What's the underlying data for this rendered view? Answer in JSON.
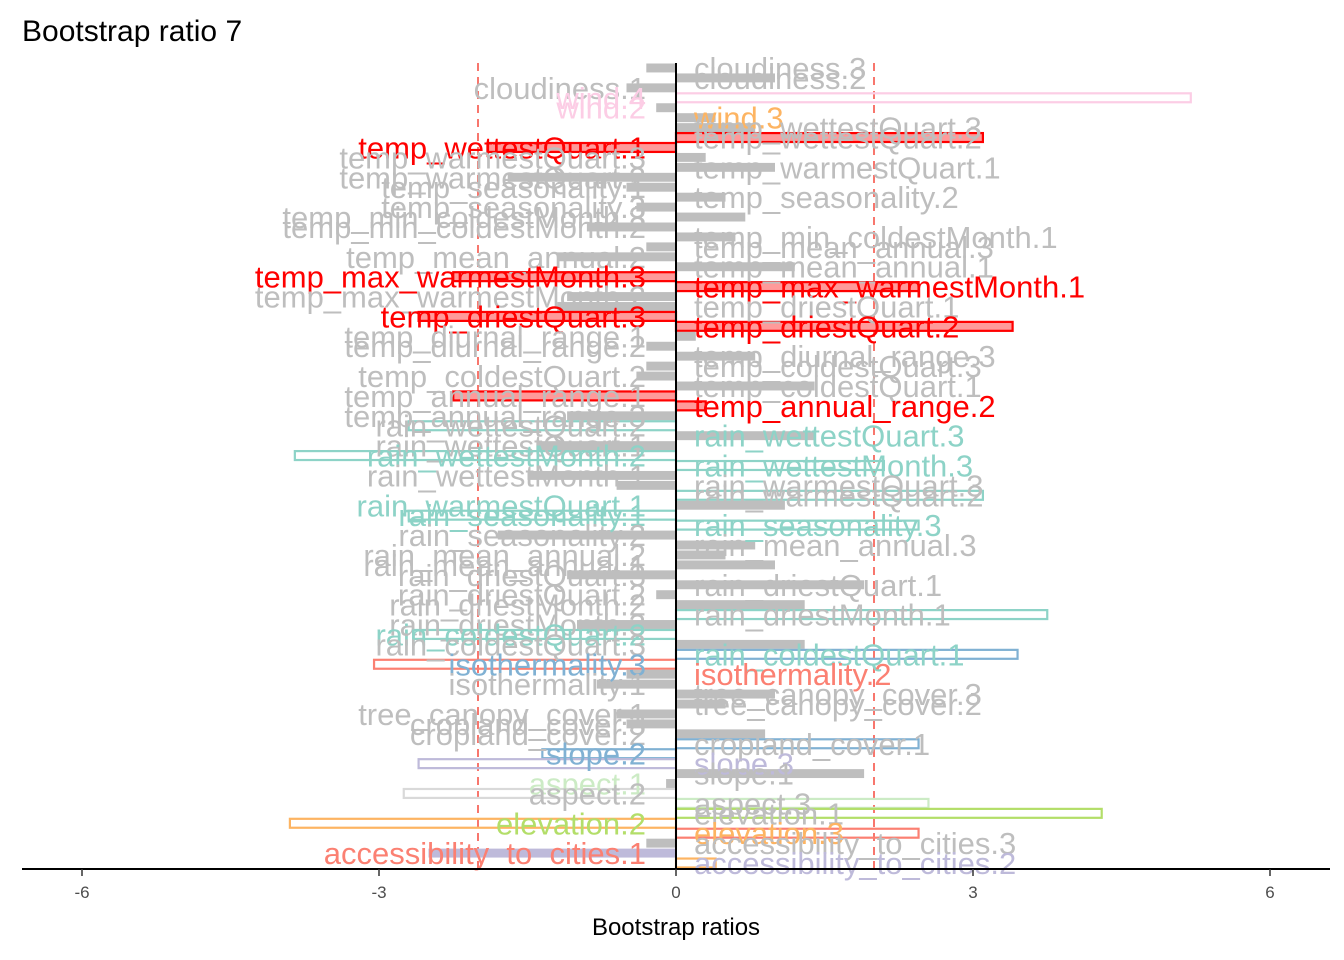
{
  "chart_data": {
    "type": "bar",
    "orientation": "horizontal",
    "title": "Bootstrap ratio 7",
    "xlabel": "Bootstrap ratios",
    "ylabel": "",
    "xlim": [
      -6.0,
      6.0
    ],
    "xticks": [
      -6,
      -3,
      0,
      3,
      6
    ],
    "threshold": 2,
    "grid": false,
    "legend": "none",
    "categories": [
      "cloudiness.3",
      "cloudiness.2",
      "cloudiness.1",
      "wind.4",
      "wind.2",
      "wind.3",
      "temp_wettestQuart.3",
      "temp_wettestQuart.2",
      "temp_wettestQuart.1",
      "temp_warmestQuart.3",
      "temp_warmestQuart.1",
      "temp_warmestQuart.2",
      "temp_seasonality.1",
      "temp_seasonality.2",
      "temp_seasonality.3",
      "temp_min_coldestMonth.3",
      "temp_min_coldestMonth.2",
      "temp_min_coldestMonth.1",
      "temp_mean_annual.3",
      "temp_mean_annual.2",
      "temp_mean_annual.1",
      "temp_max_warmestMonth.3",
      "temp_max_warmestMonth.1",
      "temp_max_warmestMonth.2",
      "temp_driestQuart.1",
      "temp_driestQuart.3",
      "temp_driestQuart.2",
      "temp_diurnal_range.1",
      "temp_diurnal_range.2",
      "temp_diurnal_range.3",
      "temp_coldestQuart.3",
      "temp_coldestQuart.2",
      "temp_coldestQuart.1",
      "temp_annual_range.1",
      "temp_annual_range.2",
      "temp_annual_range.3",
      "rain_wettestQuart.2",
      "rain_wettestQuart.3",
      "rain_wettestQuart.1",
      "rain_wettestMonth.2",
      "rain_wettestMonth.3",
      "rain_wettestMonth.1",
      "rain_warmestQuart.3",
      "rain_warmestQuart.2",
      "rain_warmestQuart.1",
      "rain_seasonality.1",
      "rain_seasonality.3",
      "rain_seasonality.2",
      "rain_mean_annual.3",
      "rain_mean_annual.2",
      "rain_mean_annual.1",
      "rain_driestQuart.3",
      "rain_driestQuart.1",
      "rain_driestQuart.2",
      "rain_driestMonth.2",
      "rain_driestMonth.1",
      "rain_driestMonth.3",
      "rain_coldestQuart.2",
      "rain_coldestQuart.3",
      "rain_coldestQuart.1",
      "isothermality.3",
      "isothermality.2",
      "isothermality.1",
      "tree_canopy_cover.3",
      "tree_canopy_cover.2",
      "tree_canopy_cover.1",
      "cropland_cover.3",
      "cropland_cover.2",
      "cropland_cover.1",
      "slope.2",
      "slope.3",
      "slope.1",
      "aspect.1",
      "aspect.2",
      "aspect.3",
      "elevation.1",
      "elevation.2",
      "elevation.3",
      "accessibility_to_cities.3",
      "accessibility_to_cities.1",
      "accessibility_to_cities.2"
    ],
    "values": [
      -0.3,
      1.0,
      -0.5,
      5.2,
      -0.2,
      0.4,
      0.8,
      3.1,
      -1.9,
      0.3,
      1.0,
      -1.7,
      -0.5,
      0.5,
      -0.4,
      0.7,
      -0.9,
      0.6,
      -0.3,
      -1.2,
      1.2,
      -2.25,
      2.45,
      -1.1,
      -1.2,
      -2.6,
      3.4,
      0.2,
      -0.3,
      0.8,
      -0.3,
      -0.4,
      1.4,
      -2.25,
      0.3,
      -1.1,
      -2.7,
      1.4,
      -1.4,
      -3.85,
      2.1,
      -1.5,
      -0.6,
      3.1,
      1.1,
      -2.7,
      2.45,
      -1.8,
      0.8,
      0.5,
      1.0,
      -1.1,
      1.9,
      -0.2,
      1.3,
      3.75,
      -1.0,
      -2.65,
      1.3,
      3.45,
      -3.05,
      -0.5,
      -0.8,
      1.0,
      0.5,
      -0.6,
      -0.5,
      0.9,
      2.45,
      -1.35,
      -2.6,
      1.9,
      -0.1,
      -2.75,
      2.55,
      4.3,
      -3.9,
      2.45,
      -0.3,
      -2.5,
      0.4
    ],
    "series_style": [
      "solid",
      "solid",
      "solid",
      "outline",
      "solid",
      "solid",
      "solid",
      "sig",
      "sig",
      "solid",
      "solid",
      "solid",
      "solid",
      "solid",
      "solid",
      "solid",
      "solid",
      "solid",
      "solid",
      "solid",
      "solid",
      "sig",
      "sig",
      "solid",
      "solid",
      "sig",
      "sig",
      "solid",
      "solid",
      "solid",
      "solid",
      "solid",
      "solid",
      "sig",
      "sig",
      "solid",
      "outline",
      "solid",
      "solid",
      "outline",
      "outline",
      "solid",
      "solid",
      "outline",
      "solid",
      "outline",
      "outline",
      "solid",
      "solid",
      "solid",
      "solid",
      "solid",
      "solid",
      "solid",
      "solid",
      "outline",
      "solid",
      "outline",
      "solid",
      "outline",
      "outline",
      "solid",
      "solid",
      "solid",
      "solid",
      "solid",
      "solid",
      "solid",
      "outline",
      "outline",
      "outline",
      "solid",
      "solid",
      "outline",
      "outline",
      "outline",
      "outline",
      "outline",
      "solid",
      "solid",
      "outline"
    ],
    "colors": {
      "nonsignificant": "#bebebe",
      "cloudiness": "#bebebe",
      "wind": "#fdb462",
      "wind.4": "#fccde5",
      "temp": "#ff0000",
      "rain": "#8dd3c7",
      "isothermality.3": "#80b1d3",
      "isothermality.2": "#fb8072",
      "slope.2": "#80b1d3",
      "slope.3": "#bebada",
      "aspect.1": "#ccebc5",
      "aspect.2": "#d9d9d9",
      "elevation.1": "#b3de69",
      "elevation.2": "#fdb462",
      "accessibility_to_cities.1": "#fb8072",
      "accessibility_to_cities.2": "#bebada",
      "threshold_line": "#f8766d"
    },
    "labels": [
      {
        "text": "cloudiness.3",
        "side": "right",
        "color": "#bebebe"
      },
      {
        "text": "cloudiness.2",
        "side": "right",
        "color": "#bebebe"
      },
      {
        "text": "cloudiness.1",
        "side": "left",
        "color": "#bebebe"
      },
      {
        "text": "wind.4",
        "side": "left",
        "color": "#fccde5"
      },
      {
        "text": "wind.2",
        "side": "left",
        "color": "#fccde5"
      },
      {
        "text": "wind.3",
        "side": "right",
        "color": "#fdb462"
      },
      {
        "text": "temp_wettestQuart.3",
        "side": "right",
        "color": "#bebebe"
      },
      {
        "text": "temp_wettestQuart.2",
        "side": "right",
        "color": "#bebebe"
      },
      {
        "text": "temp_wettestQuart.1",
        "side": "left",
        "color": "#ff0000"
      },
      {
        "text": "temp_warmestQuart.3",
        "side": "left",
        "color": "#bebebe"
      },
      {
        "text": "temp_warmestQuart.1",
        "side": "right",
        "color": "#bebebe"
      },
      {
        "text": "temp_warmestQuart.2",
        "side": "left",
        "color": "#bebebe"
      },
      {
        "text": "temp_seasonality.1",
        "side": "left",
        "color": "#bebebe"
      },
      {
        "text": "temp_seasonality.2",
        "side": "right",
        "color": "#bebebe"
      },
      {
        "text": "temp_seasonality.3",
        "side": "left",
        "color": "#bebebe"
      },
      {
        "text": "temp_min_coldestMonth.3",
        "side": "left",
        "color": "#bebebe"
      },
      {
        "text": "temp_min_coldestMonth.2",
        "side": "left",
        "color": "#bebebe"
      },
      {
        "text": "temp_min_coldestMonth.1",
        "side": "right",
        "color": "#bebebe"
      },
      {
        "text": "temp_mean_annual.3",
        "side": "right",
        "color": "#bebebe"
      },
      {
        "text": "temp_mean_annual.2",
        "side": "left",
        "color": "#bebebe"
      },
      {
        "text": "temp_mean_annual.1",
        "side": "right",
        "color": "#bebebe"
      },
      {
        "text": "temp_max_warmestMonth.3",
        "side": "left",
        "color": "#ff0000"
      },
      {
        "text": "temp_max_warmestMonth.1",
        "side": "right",
        "color": "#ff0000"
      },
      {
        "text": "temp_max_warmestMonth.2",
        "side": "left",
        "color": "#bebebe"
      },
      {
        "text": "temp_driestQuart.1",
        "side": "right",
        "color": "#bebebe"
      },
      {
        "text": "temp_driestQuart.3",
        "side": "left",
        "color": "#ff0000"
      },
      {
        "text": "temp_driestQuart.2",
        "side": "right",
        "color": "#ff0000"
      },
      {
        "text": "temp_diurnal_range.1",
        "side": "left",
        "color": "#bebebe"
      },
      {
        "text": "temp_diurnal_range.2",
        "side": "left",
        "color": "#bebebe"
      },
      {
        "text": "temp_diurnal_range.3",
        "side": "right",
        "color": "#bebebe"
      },
      {
        "text": "temp_coldestQuart.3",
        "side": "right",
        "color": "#bebebe"
      },
      {
        "text": "temp_coldestQuart.2",
        "side": "left",
        "color": "#bebebe"
      },
      {
        "text": "temp_coldestQuart.1",
        "side": "right",
        "color": "#bebebe"
      },
      {
        "text": "temp_annual_range.1",
        "side": "left",
        "color": "#bebebe"
      },
      {
        "text": "temp_annual_range.2",
        "side": "right",
        "color": "#ff0000"
      },
      {
        "text": "temp_annual_range.3",
        "side": "left",
        "color": "#bebebe"
      },
      {
        "text": "rain_wettestQuart.2",
        "side": "left",
        "color": "#bebebe"
      },
      {
        "text": "rain_wettestQuart.3",
        "side": "right",
        "color": "#8dd3c7"
      },
      {
        "text": "rain_wettestQuart.1",
        "side": "left",
        "color": "#bebebe"
      },
      {
        "text": "rain_wettestMonth.2",
        "side": "left",
        "color": "#8dd3c7"
      },
      {
        "text": "rain_wettestMonth.3",
        "side": "right",
        "color": "#8dd3c7"
      },
      {
        "text": "rain_wettestMonth.1",
        "side": "left",
        "color": "#bebebe"
      },
      {
        "text": "rain_warmestQuart.3",
        "side": "right",
        "color": "#bebebe"
      },
      {
        "text": "rain_warmestQuart.2",
        "side": "right",
        "color": "#bebebe"
      },
      {
        "text": "rain_warmestQuart.1",
        "side": "left",
        "color": "#8dd3c7"
      },
      {
        "text": "rain_seasonality.1",
        "side": "left",
        "color": "#8dd3c7"
      },
      {
        "text": "rain_seasonality.3",
        "side": "right",
        "color": "#8dd3c7"
      },
      {
        "text": "rain_seasonality.2",
        "side": "left",
        "color": "#bebebe"
      },
      {
        "text": "rain_mean_annual.3",
        "side": "right",
        "color": "#bebebe"
      },
      {
        "text": "rain_mean_annual.2",
        "side": "left",
        "color": "#bebebe"
      },
      {
        "text": "rain_mean_annual.1",
        "side": "left",
        "color": "#bebebe"
      },
      {
        "text": "rain_driestQuart.3",
        "side": "left",
        "color": "#bebebe"
      },
      {
        "text": "rain_driestQuart.1",
        "side": "right",
        "color": "#bebebe"
      },
      {
        "text": "rain_driestQuart.2",
        "side": "left",
        "color": "#bebebe"
      },
      {
        "text": "rain_driestMonth.2",
        "side": "left",
        "color": "#bebebe"
      },
      {
        "text": "rain_driestMonth.1",
        "side": "right",
        "color": "#bebebe"
      },
      {
        "text": "rain_driestMonth.3",
        "side": "left",
        "color": "#bebebe"
      },
      {
        "text": "rain_coldestQuart.2",
        "side": "left",
        "color": "#8dd3c7"
      },
      {
        "text": "rain_coldestQuart.3",
        "side": "left",
        "color": "#bebebe"
      },
      {
        "text": "rain_coldestQuart.1",
        "side": "right",
        "color": "#8dd3c7"
      },
      {
        "text": "isothermality.3",
        "side": "left",
        "color": "#80b1d3"
      },
      {
        "text": "isothermality.2",
        "side": "right",
        "color": "#fb8072"
      },
      {
        "text": "isothermality.1",
        "side": "left",
        "color": "#bebebe"
      },
      {
        "text": "tree_canopy_cover.3",
        "side": "right",
        "color": "#bebebe"
      },
      {
        "text": "tree_canopy_cover.2",
        "side": "right",
        "color": "#bebebe"
      },
      {
        "text": "tree_canopy_cover.1",
        "side": "left",
        "color": "#bebebe"
      },
      {
        "text": "cropland_cover.3",
        "side": "left",
        "color": "#bebebe"
      },
      {
        "text": "cropland_cover.2",
        "side": "left",
        "color": "#bebebe"
      },
      {
        "text": "cropland_cover.1",
        "side": "right",
        "color": "#bebebe"
      },
      {
        "text": "slope.2",
        "side": "left",
        "color": "#80b1d3"
      },
      {
        "text": "slope.3",
        "side": "right",
        "color": "#bebada"
      },
      {
        "text": "slope.1",
        "side": "right",
        "color": "#bebebe"
      },
      {
        "text": "aspect.1",
        "side": "left",
        "color": "#ccebc5"
      },
      {
        "text": "aspect.2",
        "side": "left",
        "color": "#bebebe"
      },
      {
        "text": "aspect.3",
        "side": "right",
        "color": "#bebebe"
      },
      {
        "text": "elevation.1",
        "side": "right",
        "color": "#bebebe"
      },
      {
        "text": "elevation.2",
        "side": "left",
        "color": "#b3de69"
      },
      {
        "text": "elevation.3",
        "side": "right",
        "color": "#fdb462"
      },
      {
        "text": "accessibility_to_cities.3",
        "side": "right",
        "color": "#bebebe"
      },
      {
        "text": "accessibility_to_cities.1",
        "side": "left",
        "color": "#fb8072"
      },
      {
        "text": "accessibility_to_cities.2",
        "side": "right",
        "color": "#bebada"
      }
    ],
    "bar_colors": [
      "#bebebe",
      "#bebebe",
      "#bebebe",
      "#fccde5",
      "#bebebe",
      "#bebebe",
      "#bebebe",
      "#ff0000",
      "#ff0000",
      "#bebebe",
      "#bebebe",
      "#bebebe",
      "#bebebe",
      "#bebebe",
      "#bebebe",
      "#bebebe",
      "#bebebe",
      "#bebebe",
      "#bebebe",
      "#bebebe",
      "#bebebe",
      "#ff0000",
      "#ff0000",
      "#bebebe",
      "#bebebe",
      "#ff0000",
      "#ff0000",
      "#bebebe",
      "#bebebe",
      "#bebebe",
      "#bebebe",
      "#bebebe",
      "#bebebe",
      "#ff0000",
      "#ff0000",
      "#bebebe",
      "#8dd3c7",
      "#bebebe",
      "#bebebe",
      "#8dd3c7",
      "#8dd3c7",
      "#bebebe",
      "#bebebe",
      "#8dd3c7",
      "#bebebe",
      "#8dd3c7",
      "#8dd3c7",
      "#bebebe",
      "#bebebe",
      "#bebebe",
      "#bebebe",
      "#bebebe",
      "#bebebe",
      "#bebebe",
      "#bebebe",
      "#8dd3c7",
      "#bebebe",
      "#8dd3c7",
      "#bebebe",
      "#80b1d3",
      "#fb8072",
      "#bebebe",
      "#bebebe",
      "#bebebe",
      "#bebebe",
      "#bebebe",
      "#bebebe",
      "#bebebe",
      "#80b1d3",
      "#80b1d3",
      "#bebada",
      "#bebebe",
      "#bebebe",
      "#d9d9d9",
      "#ccebc5",
      "#b3de69",
      "#fdb462",
      "#fb8072",
      "#bebebe",
      "#bebada",
      "#fdb462"
    ]
  }
}
